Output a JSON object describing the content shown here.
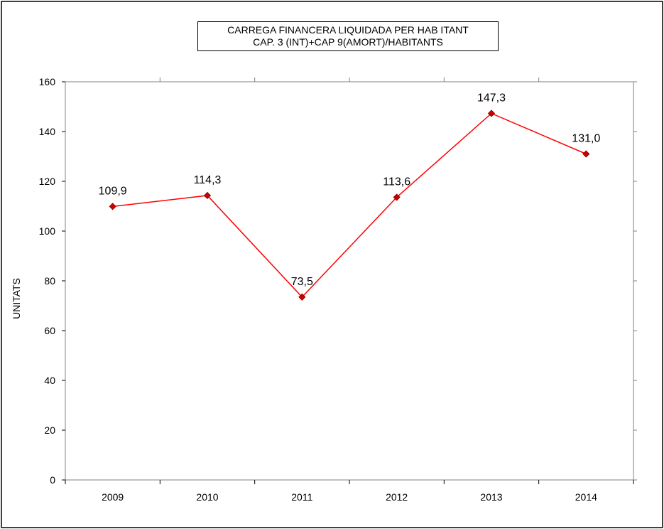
{
  "chart_data": {
    "type": "line",
    "title": "CARREGA FINANCERA LIQUIDADA PER HAB ITANT",
    "subtitle": "CAP. 3 (INT)+CAP 9(AMORT)/HABITANTS",
    "xlabel": "",
    "ylabel": "UNITATS",
    "categories": [
      "2009",
      "2010",
      "2011",
      "2012",
      "2013",
      "2014"
    ],
    "values": [
      109.9,
      114.3,
      73.5,
      113.6,
      147.3,
      131.0
    ],
    "data_labels": [
      "109,9",
      "114,3",
      "73,5",
      "113,6",
      "147,3",
      "131,0"
    ],
    "ylim": [
      0,
      160
    ],
    "yticks": [
      0,
      20,
      40,
      60,
      80,
      100,
      120,
      140,
      160
    ],
    "grid": false,
    "line_color": "#ff0000",
    "marker_color": "#cc0000"
  }
}
